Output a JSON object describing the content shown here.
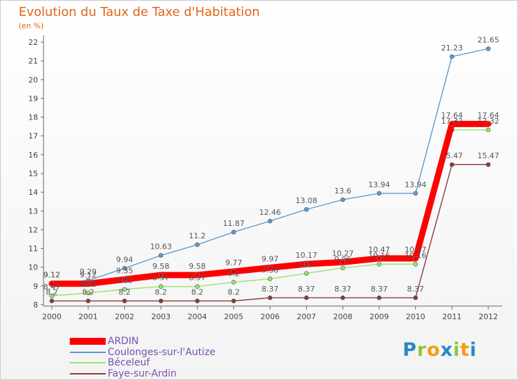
{
  "title": "Evolution du Taux de Taxe d'Habitation",
  "subtitle": "(en %)",
  "logo": {
    "text": "Proxiti"
  },
  "chart_data": {
    "type": "line",
    "x": [
      "2000",
      "2001",
      "2002",
      "2003",
      "2004",
      "2005",
      "2006",
      "2007",
      "2008",
      "2009",
      "2010",
      "2011",
      "2012"
    ],
    "ylim": [
      8,
      22
    ],
    "yticks": [
      8,
      9,
      10,
      11,
      12,
      13,
      14,
      15,
      16,
      17,
      18,
      19,
      20,
      21,
      22
    ],
    "grid": false,
    "legend_position": "bottom-left",
    "series": [
      {
        "name": "ARDIN",
        "color": "#ff0000",
        "values": [
          9.12,
          9.12,
          9.35,
          9.58,
          9.58,
          9.77,
          9.97,
          10.17,
          10.27,
          10.47,
          10.47,
          17.64,
          17.64
        ],
        "labels": [
          "9.12",
          "9.12",
          "9.35",
          "9.58",
          "9.58",
          "9.77",
          "9.97",
          "10.17",
          "10.27",
          "10.47",
          "10.47",
          "17.64",
          "17.64"
        ]
      },
      {
        "name": "Coulonges-sur-l'Autize",
        "color": "#5b9bd5",
        "values": [
          9.12,
          9.29,
          9.94,
          10.63,
          11.2,
          11.87,
          12.46,
          13.08,
          13.6,
          13.94,
          13.94,
          21.23,
          21.65
        ],
        "labels": [
          "9.12",
          "9.29",
          "9.94",
          "10.63",
          "11.2",
          "11.87",
          "12.46",
          "13.08",
          "13.6",
          "13.94",
          "13.94",
          "21.23",
          "21.65"
        ]
      },
      {
        "name": "Béceleuf",
        "color": "#99e36b",
        "values": [
          8.47,
          8.63,
          8.82,
          8.97,
          8.97,
          9.2,
          9.38,
          9.67,
          9.96,
          10.16,
          10.16,
          17.32,
          17.32
        ],
        "labels": [
          "8.47",
          "8.63",
          "8.82",
          "8.97",
          "8.97",
          "9.2",
          "9.38",
          "9.67",
          "9.96",
          "10.16",
          "10.16",
          "17.32",
          "17.32"
        ]
      },
      {
        "name": "Faye-sur-Ardin",
        "color": "#8b3a3a",
        "values": [
          8.2,
          8.2,
          8.2,
          8.2,
          8.2,
          8.2,
          8.37,
          8.37,
          8.37,
          8.37,
          8.37,
          15.47,
          15.47
        ],
        "labels": [
          "8.2",
          "8.2",
          "8.2",
          "8.2",
          "8.2",
          "8.2",
          "8.37",
          "8.37",
          "8.37",
          "8.37",
          "8.37",
          "15.47",
          "15.47"
        ]
      }
    ]
  }
}
